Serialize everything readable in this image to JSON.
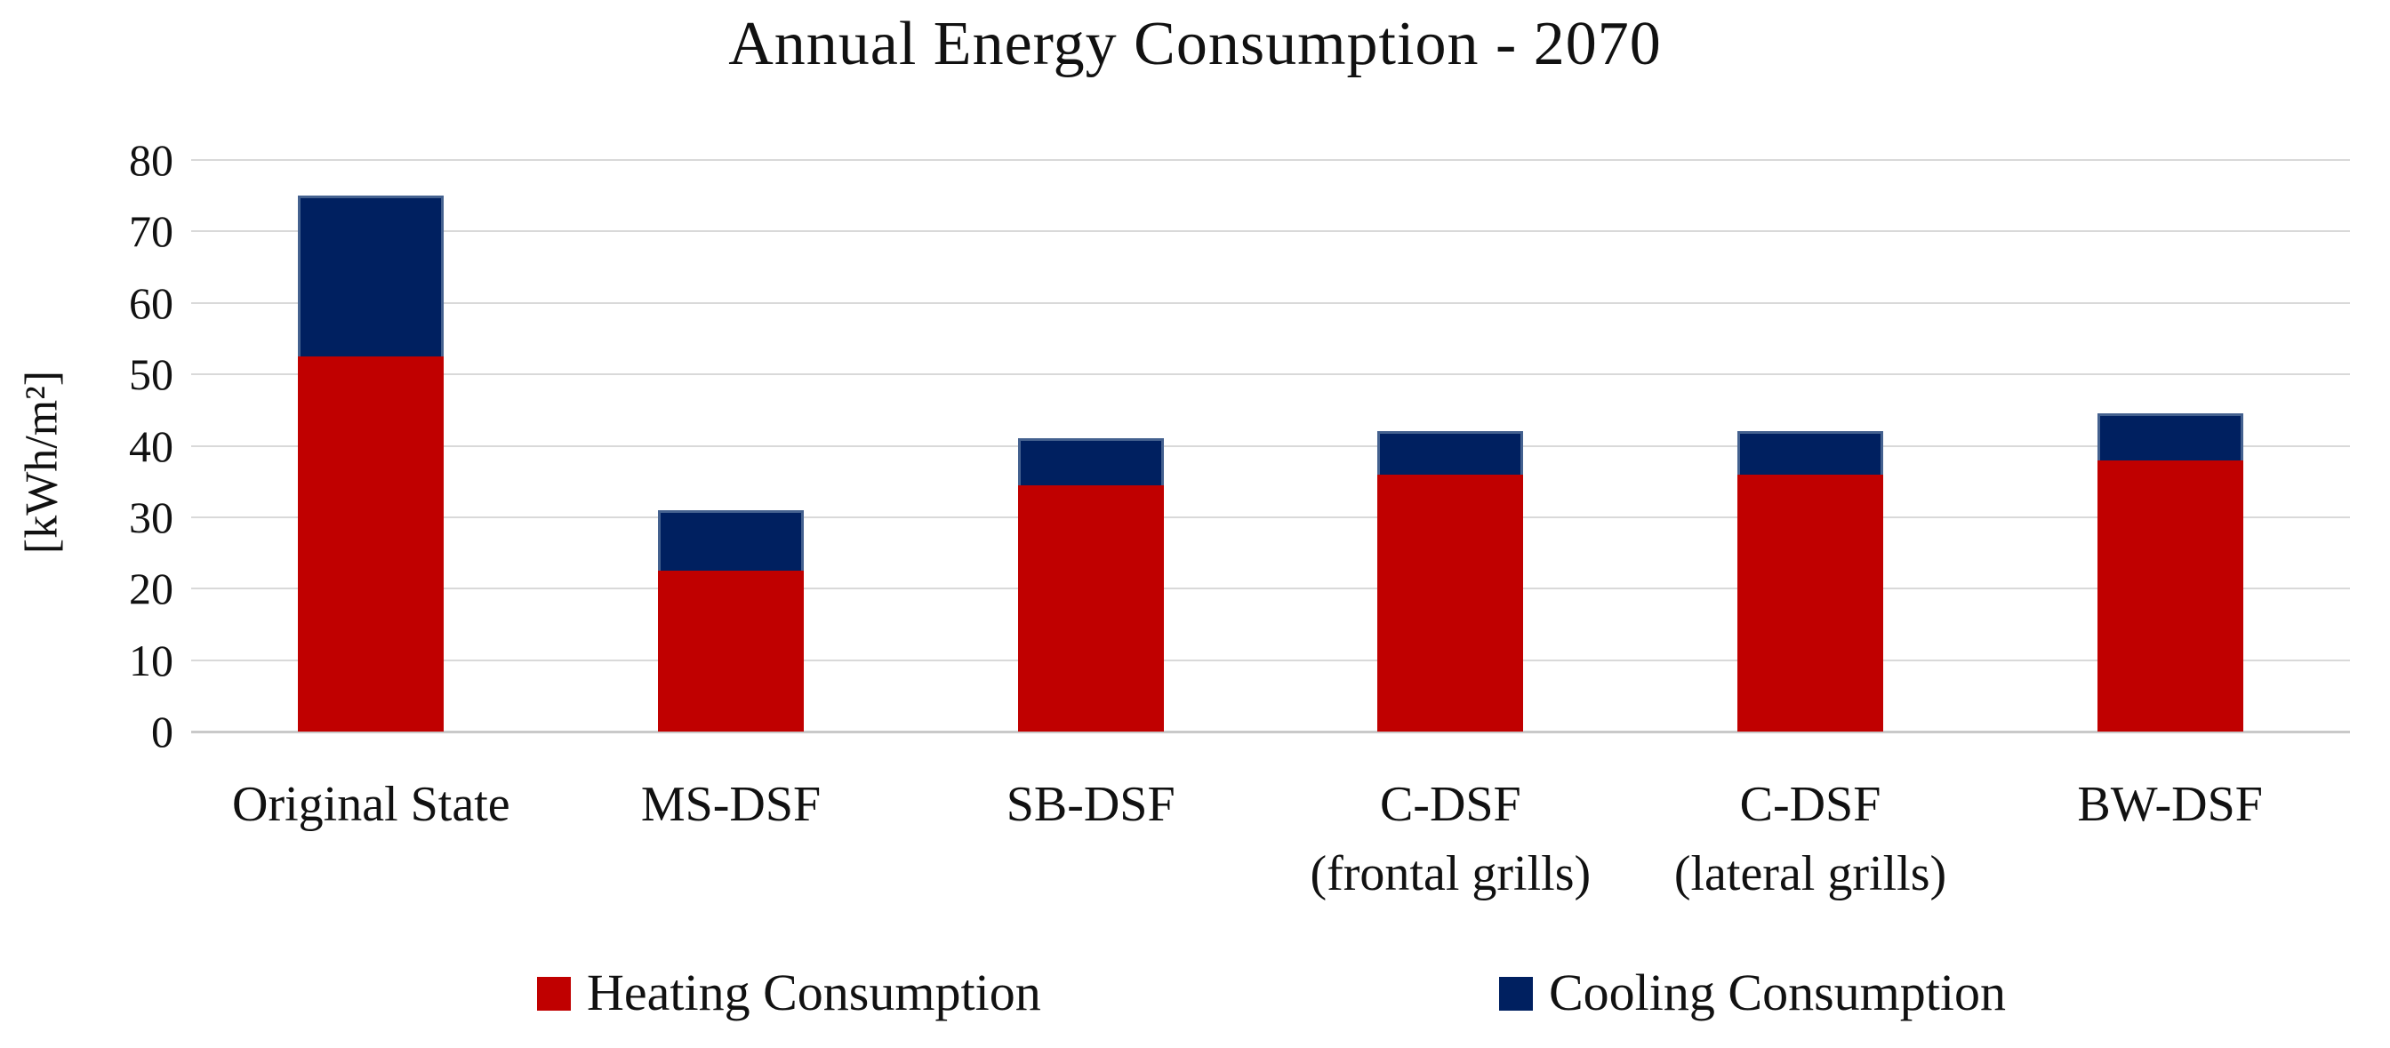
{
  "title": "Annual Energy Consumption - 2070",
  "chart_data": {
    "type": "bar",
    "stacked": true,
    "title": "Annual Energy Consumption - 2070",
    "ylabel": "[kWh/m²]",
    "xlabel": "",
    "ylim": [
      0,
      80
    ],
    "yticks": [
      0,
      10,
      20,
      30,
      40,
      50,
      60,
      70,
      80
    ],
    "grid": "horizontal",
    "legend_position": "bottom",
    "categories": [
      "Original State",
      "MS-DSF",
      "SB-DSF",
      "C-DSF (frontal grills)",
      "C-DSF (lateral grills)",
      "BW-DSF"
    ],
    "category_lines": [
      [
        "Original State"
      ],
      [
        "MS-DSF"
      ],
      [
        "SB-DSF"
      ],
      [
        "C-DSF",
        "(frontal grills)"
      ],
      [
        "C-DSF",
        "(lateral grills)"
      ],
      [
        "BW-DSF"
      ]
    ],
    "series": [
      {
        "name": "Heating Consumption",
        "color": "#c00000",
        "values": [
          52.5,
          22.5,
          34.5,
          36,
          36,
          38
        ]
      },
      {
        "name": "Cooling Consumption",
        "color": "#002060",
        "values": [
          22.5,
          8.5,
          6.5,
          6,
          6,
          6.5
        ]
      }
    ],
    "totals": [
      75,
      31,
      41,
      42,
      42,
      44.5
    ]
  },
  "colors": {
    "heating": "#c00000",
    "cooling": "#002060",
    "cooling_border": "#44618f",
    "gridline": "#d9d9d9",
    "text": "#111111"
  }
}
